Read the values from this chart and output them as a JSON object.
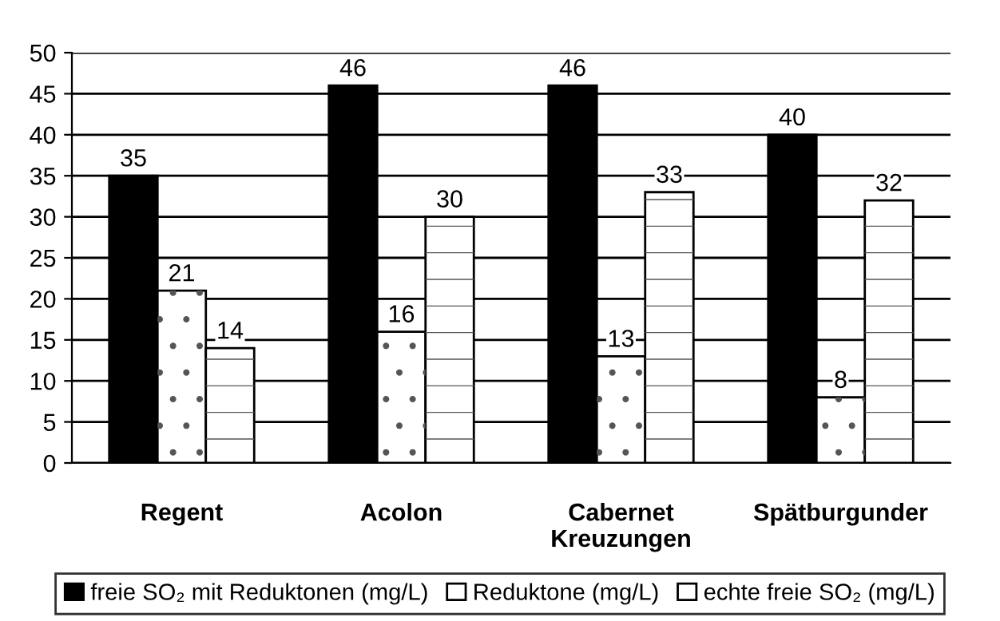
{
  "chart_data": {
    "type": "bar",
    "categories": [
      "Regent",
      "Acolon",
      "Cabernet\nKreuzungen",
      "Spätburgunder"
    ],
    "series": [
      {
        "name": "freie SO₂ mit Reduktonen (mg/L)",
        "color": "#000000",
        "values": [
          35,
          46,
          46,
          40
        ]
      },
      {
        "name": "Reduktone (mg/L)",
        "color": "#ffffff",
        "values": [
          21,
          16,
          13,
          8
        ]
      },
      {
        "name": "echte freie SO₂ (mg/L)",
        "color": "#ffffff",
        "values": [
          14,
          30,
          33,
          32
        ]
      }
    ],
    "ylim": [
      0,
      50
    ],
    "yticks": [
      0,
      5,
      10,
      15,
      20,
      25,
      30,
      35,
      40,
      45,
      50
    ],
    "grid": "y",
    "legend": "bottom",
    "data_labels": true
  }
}
